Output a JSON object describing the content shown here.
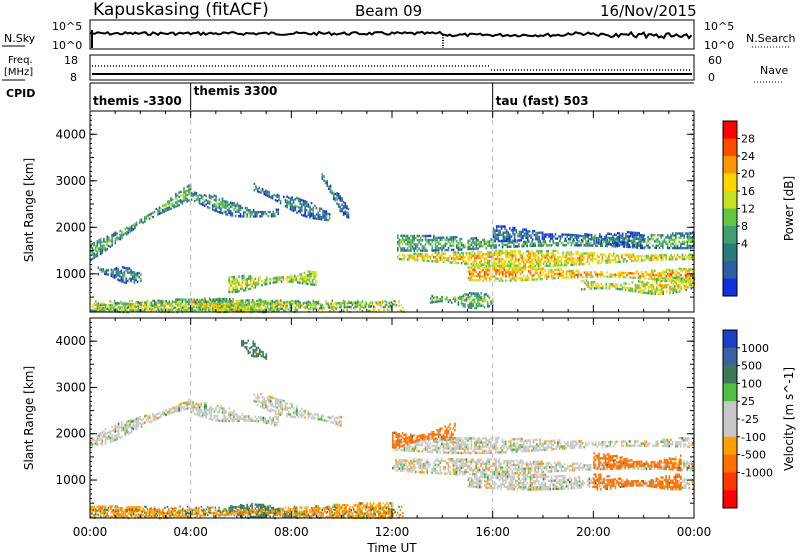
{
  "header": {
    "station": "Kapuskasing (fitACF)",
    "beam": "Beam 09",
    "date": "16/Nov/2015"
  },
  "strips": {
    "nsky_label": "N.Sky",
    "nsky_ticks": [
      "10^5",
      "10^0"
    ],
    "nsearch_label": "N.Search",
    "nsearch_ticks": [
      "10^5",
      "10^0"
    ],
    "freq_label_1": "Freq.",
    "freq_label_2": "[MHz]",
    "freq_ticks": [
      "18",
      "8"
    ],
    "nave_label": "Nave",
    "nave_ticks": [
      "60",
      "0"
    ],
    "cpid_label": "CPID",
    "cpid_segments": [
      {
        "label": "themis -3300",
        "start": 0,
        "end": 4
      },
      {
        "label": "themis 3300",
        "start": 4,
        "end": 16
      },
      {
        "label": "tau (fast) 503",
        "start": 16,
        "end": 24
      }
    ]
  },
  "axes": {
    "ylabel": "Slant Range [km]",
    "xlabel": "Time UT",
    "yticks": [
      "4000",
      "3000",
      "2000",
      "1000"
    ],
    "xticks": [
      "00:00",
      "04:00",
      "08:00",
      "12:00",
      "16:00",
      "20:00",
      "00:00"
    ]
  },
  "power_scale": {
    "label": "Power [dB]",
    "ticks": [
      "28",
      "24",
      "20",
      "16",
      "12",
      "8",
      "4"
    ],
    "colors": [
      "#ff0000",
      "#ff4a00",
      "#ff9800",
      "#ffd400",
      "#c8e020",
      "#60c840",
      "#40a070",
      "#2b7a7a",
      "#2b5fa8",
      "#1030e0"
    ]
  },
  "velocity_scale": {
    "label": "Velocity [m s^-1]",
    "ticks": [
      "1000",
      "500",
      "100",
      "25",
      "-25",
      "-100",
      "-500",
      "-1000"
    ],
    "colors": [
      "#1a40c8",
      "#3a62a0",
      "#3a7a58",
      "#50c040",
      "#c8c8c8",
      "#c8c8c8",
      "#ffa000",
      "#ff7000",
      "#ff3800",
      "#ff0000"
    ]
  },
  "chart_data": {
    "type": "heatmap",
    "x_range_hours": [
      0,
      24
    ],
    "y_range_km": [
      180,
      4500
    ],
    "panels": [
      {
        "quantity": "power",
        "bands": [
          {
            "t0": 0.0,
            "t1": 4.0,
            "r0": 1500,
            "r1": 1900,
            "r2": 2400,
            "r3": 2800,
            "v": 14
          },
          {
            "t0": 4.0,
            "t1": 7.5,
            "r0": 2700,
            "r1": 2550,
            "r2": 2200,
            "r3": 2350,
            "v": 12
          },
          {
            "t0": 6.5,
            "t1": 9.5,
            "r0": 2900,
            "r1": 2600,
            "r2": 2450,
            "r3": 2250,
            "v": 10
          },
          {
            "t0": 9.2,
            "t1": 10.3,
            "r0": 3150,
            "r1": 2800,
            "r2": 2500,
            "r3": 2300,
            "v": 10
          },
          {
            "t0": 5.5,
            "t1": 9.0,
            "r0": 800,
            "r1": 850,
            "r2": 950,
            "r3": 950,
            "v": 20
          },
          {
            "t0": 0.3,
            "t1": 2.0,
            "r0": 1100,
            "r1": 1050,
            "r2": 1000,
            "r3": 950,
            "v": 10
          },
          {
            "t0": 4.0,
            "t1": 6.5,
            "r0": 450,
            "r1": 350,
            "r2": 300,
            "r3": 250,
            "v": 24
          },
          {
            "t0": 0.0,
            "t1": 12.0,
            "r0": 300,
            "r1": 320,
            "r2": 340,
            "r3": 380,
            "v": 18
          },
          {
            "t0": 12.2,
            "t1": 24.0,
            "r0": 1700,
            "r1": 1650,
            "r2": 1700,
            "r3": 1750,
            "v": 14
          },
          {
            "t0": 12.2,
            "t1": 24.0,
            "r0": 1400,
            "r1": 1350,
            "r2": 1350,
            "r3": 1400,
            "v": 24
          },
          {
            "t0": 15.0,
            "t1": 24.0,
            "r0": 1050,
            "r1": 1050,
            "r2": 1000,
            "r3": 1000,
            "v": 26
          },
          {
            "t0": 19.5,
            "t1": 24.0,
            "r0": 800,
            "r1": 750,
            "r2": 700,
            "r3": 850,
            "v": 22
          },
          {
            "t0": 13.5,
            "t1": 16.0,
            "r0": 500,
            "r1": 480,
            "r2": 450,
            "r3": 450,
            "v": 16
          },
          {
            "t0": 16.0,
            "t1": 22.0,
            "r0": 1900,
            "r1": 1850,
            "r2": 1800,
            "r3": 1750,
            "v": 8
          }
        ]
      },
      {
        "quantity": "velocity",
        "bands": [
          {
            "t0": 0.0,
            "t1": 4.0,
            "r0": 1800,
            "r1": 2200,
            "r2": 2400,
            "r3": 2700,
            "v": 0
          },
          {
            "t0": 4.0,
            "t1": 7.5,
            "r0": 2600,
            "r1": 2450,
            "r2": 2350,
            "r3": 2300,
            "v": 0
          },
          {
            "t0": 6.5,
            "t1": 10.0,
            "r0": 2800,
            "r1": 2550,
            "r2": 2400,
            "r3": 2300,
            "v": 0
          },
          {
            "t0": 12.0,
            "t1": 24.0,
            "r0": 1800,
            "r1": 1750,
            "r2": 1800,
            "r3": 1850,
            "v": 0
          },
          {
            "t0": 12.0,
            "t1": 24.0,
            "r0": 1350,
            "r1": 1300,
            "r2": 1300,
            "r3": 1350,
            "v": 0
          },
          {
            "t0": 15.0,
            "t1": 24.0,
            "r0": 1000,
            "r1": 1000,
            "r2": 950,
            "r3": 950,
            "v": 0
          },
          {
            "t0": 20.0,
            "t1": 23.5,
            "r0": 1000,
            "r1": 950,
            "r2": 950,
            "r3": 1000,
            "v": -300
          },
          {
            "t0": 20.0,
            "t1": 23.5,
            "r0": 1450,
            "r1": 1400,
            "r2": 1350,
            "r3": 1400,
            "v": -200
          },
          {
            "t0": 12.0,
            "t1": 14.5,
            "r0": 1900,
            "r1": 1900,
            "r2": 2000,
            "r3": 2100,
            "v": -300
          },
          {
            "t0": 5.5,
            "t1": 8.5,
            "r0": 400,
            "r1": 350,
            "r2": 300,
            "r3": 300,
            "v": 150
          },
          {
            "t0": 0.0,
            "t1": 12.0,
            "r0": 300,
            "r1": 320,
            "r2": 340,
            "r3": 380,
            "v": -80
          },
          {
            "t0": 6.0,
            "t1": 7.0,
            "r0": 4000,
            "r1": 3900,
            "r2": 3800,
            "r3": 3700,
            "v": 150
          }
        ]
      }
    ]
  }
}
